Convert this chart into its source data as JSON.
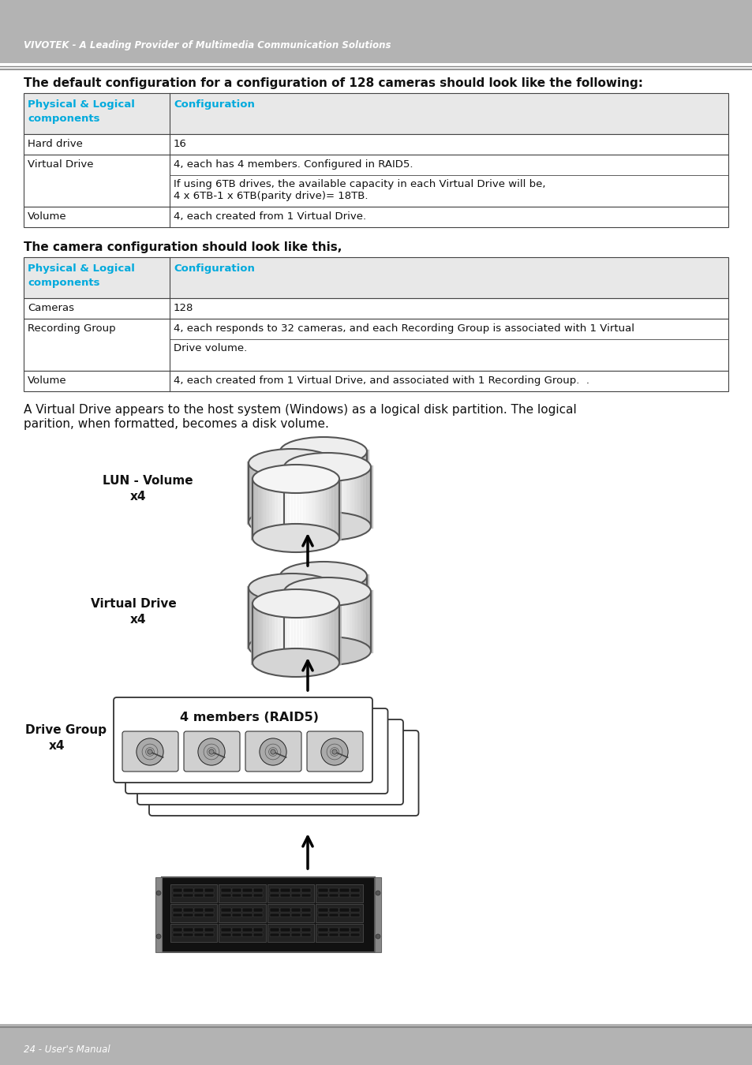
{
  "header_bg": "#b3b3b3",
  "header_text_color": "#ffffff",
  "header_text": "VIVOTEK - A Leading Provider of Multimedia Communication Solutions",
  "footer_bg": "#b3b3b3",
  "footer_text": "24 - User's Manual",
  "page_bg": "#ffffff",
  "table_header_bg": "#e8e8e8",
  "blue_color": "#00aadd",
  "black_color": "#111111",
  "table_border_color": "#444444",
  "title1": "The default configuration for a configuration of 128 cameras should look like the following:",
  "title2": "The camera configuration should look like this,",
  "title3": "A Virtual Drive appears to the host system (Windows) as a logical disk partition. The logical\nparition, when formatted, becomes a disk volume.",
  "t1_rows": [
    [
      "Hard drive",
      "16",
      false
    ],
    [
      "Virtual Drive",
      "4, each has 4 members. Configured in RAID5.|If using 6TB drives, the available capacity in each Virtual Drive will be,|4 x 6TB-1 x 6TB(parity drive)= 18TB.",
      true
    ],
    [
      "Volume",
      "4, each created from 1 Virtual Drive.",
      false
    ]
  ],
  "t2_rows": [
    [
      "Cameras",
      "128",
      false
    ],
    [
      "Recording Group",
      "4, each responds to 32 cameras, and each Recording Group is associated with 1 Virtual|Drive volume.",
      true
    ],
    [
      "Volume",
      "4, each created from 1 Virtual Drive, and associated with 1 Recording Group.  .",
      false
    ]
  ]
}
